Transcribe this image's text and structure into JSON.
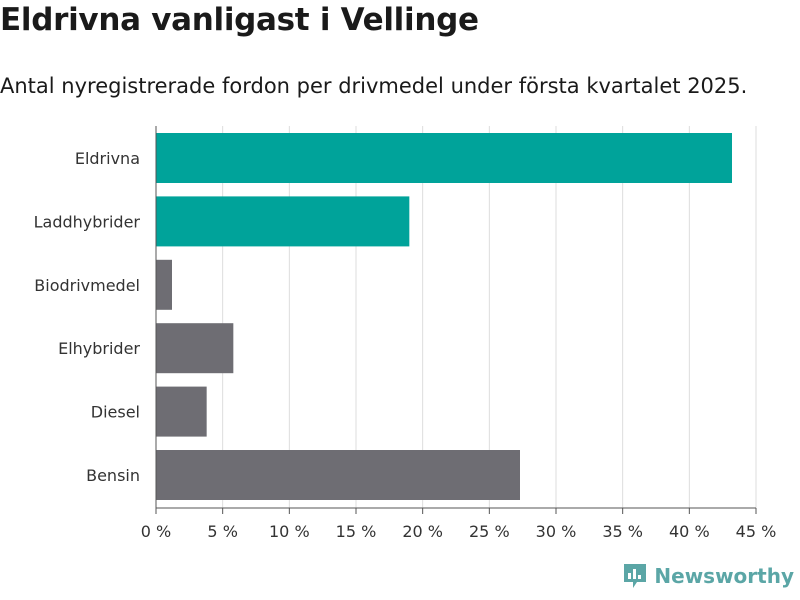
{
  "title": "Eldrivna vanligast i Vellinge",
  "subtitle": "Antal nyregistrerade fordon per drivmedel under första kvartalet 2025.",
  "brand": {
    "name": "Newsworthy",
    "icon": "newsworthy-logo-icon",
    "color": "#5ba6a6"
  },
  "colors": {
    "highlight": "#00a39a",
    "default": "#6e6d73",
    "grid": "#dddddd",
    "axis": "#555555"
  },
  "chart_data": {
    "type": "bar",
    "orientation": "horizontal",
    "categories": [
      "Eldrivna",
      "Laddhybrider",
      "Biodrivmedel",
      "Elhybrider",
      "Diesel",
      "Bensin"
    ],
    "values": [
      43.2,
      19.0,
      1.2,
      5.8,
      3.8,
      27.3
    ],
    "highlighted": [
      true,
      true,
      false,
      false,
      false,
      false
    ],
    "xlim": [
      0,
      45
    ],
    "xticks": [
      0,
      5,
      10,
      15,
      20,
      25,
      30,
      35,
      40,
      45
    ],
    "xtick_labels": [
      "0 %",
      "5 %",
      "10 %",
      "15 %",
      "20 %",
      "25 %",
      "30 %",
      "35 %",
      "40 %",
      "45 %"
    ],
    "grid": true
  }
}
